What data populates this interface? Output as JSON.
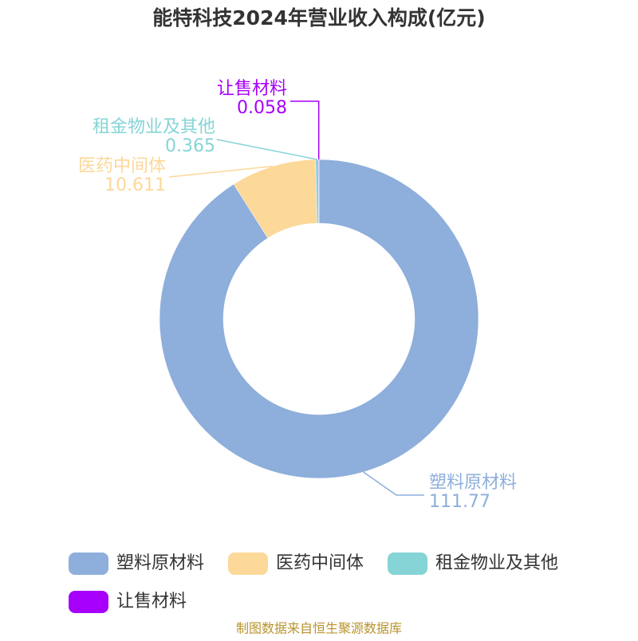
{
  "chart_data": {
    "type": "donut",
    "title": "能特科技2024年营业收入构成(亿元)",
    "categories": [
      "塑料原材料",
      "医药中间体",
      "租金物业及其他",
      "让售材料"
    ],
    "values": [
      111.77,
      10.611,
      0.365,
      0.058
    ],
    "colors": [
      "#8eaedb",
      "#fcd899",
      "#86d4d6",
      "#a600fb"
    ],
    "source": "制图数据来自恒生聚源数据库"
  }
}
